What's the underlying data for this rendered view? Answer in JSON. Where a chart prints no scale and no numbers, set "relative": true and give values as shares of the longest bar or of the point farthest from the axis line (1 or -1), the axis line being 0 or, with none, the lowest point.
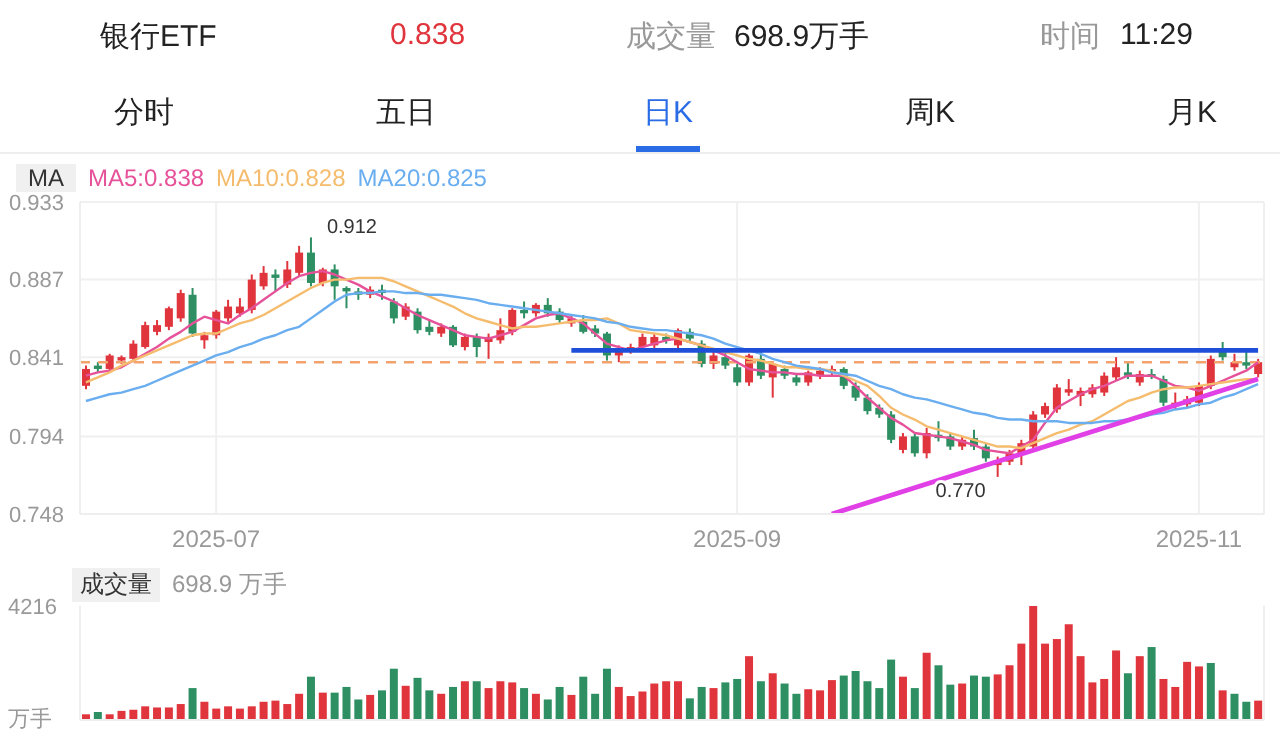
{
  "chart_data": [
    {
      "type": "other",
      "title": "银行ETF",
      "annotations": [
        "0.838",
        "成交量",
        "698.9万手",
        "时间",
        "11:29",
        "分时",
        "五日",
        "日K",
        "周K",
        "月K"
      ]
    },
    {
      "type": "candlestick",
      "categories": [
        null,
        null,
        null,
        null,
        null,
        null,
        null,
        null,
        null,
        null,
        null,
        "2025-07",
        null,
        null,
        null,
        null,
        null,
        null,
        null,
        null,
        null,
        null,
        null,
        null,
        null,
        null,
        null,
        null,
        null,
        null,
        null,
        null,
        null,
        null,
        null,
        null,
        null,
        null,
        null,
        null,
        null,
        null,
        null,
        null,
        null,
        null,
        null,
        null,
        null,
        null,
        null,
        null,
        null,
        null,
        null,
        "2025-09",
        null,
        null,
        null,
        null,
        null,
        null,
        null,
        null,
        null,
        null,
        null,
        null,
        null,
        null,
        null,
        null,
        null,
        null,
        null,
        null,
        null,
        null,
        null,
        null,
        null,
        null,
        null,
        null,
        null,
        null,
        null,
        null,
        null,
        null,
        null,
        null,
        null,
        null,
        "2025-11",
        null,
        null,
        null,
        null,
        null
      ],
      "ohlc": [
        [
          0.824,
          0.836,
          0.822,
          0.834
        ],
        [
          0.836,
          0.838,
          0.832,
          0.834
        ],
        [
          0.834,
          0.843,
          0.832,
          0.842
        ],
        [
          0.839,
          0.842,
          0.837,
          0.841
        ],
        [
          0.84,
          0.851,
          0.838,
          0.849
        ],
        [
          0.847,
          0.862,
          0.846,
          0.86
        ],
        [
          0.856,
          0.863,
          0.854,
          0.86
        ],
        [
          0.859,
          0.871,
          0.857,
          0.87
        ],
        [
          0.864,
          0.881,
          0.862,
          0.879
        ],
        [
          0.878,
          0.882,
          0.853,
          0.855
        ],
        [
          0.851,
          0.856,
          0.846,
          0.854
        ],
        [
          0.854,
          0.869,
          0.852,
          0.868
        ],
        [
          0.864,
          0.875,
          0.862,
          0.871
        ],
        [
          0.867,
          0.876,
          0.865,
          0.871
        ],
        [
          0.869,
          0.89,
          0.867,
          0.887
        ],
        [
          0.883,
          0.895,
          0.881,
          0.891
        ],
        [
          0.89,
          0.893,
          0.88,
          0.888
        ],
        [
          0.884,
          0.898,
          0.882,
          0.893
        ],
        [
          0.891,
          0.907,
          0.889,
          0.903
        ],
        [
          0.903,
          0.912,
          0.883,
          0.885
        ],
        [
          0.885,
          0.894,
          0.883,
          0.893
        ],
        [
          0.893,
          0.896,
          0.875,
          0.883
        ],
        [
          0.882,
          0.883,
          0.87,
          0.88
        ],
        [
          0.88,
          0.882,
          0.875,
          0.878
        ],
        [
          0.878,
          0.883,
          0.876,
          0.881
        ],
        [
          0.881,
          0.884,
          0.875,
          0.879
        ],
        [
          0.874,
          0.876,
          0.861,
          0.864
        ],
        [
          0.865,
          0.873,
          0.863,
          0.871
        ],
        [
          0.868,
          0.87,
          0.855,
          0.857
        ],
        [
          0.859,
          0.863,
          0.854,
          0.856
        ],
        [
          0.855,
          0.861,
          0.853,
          0.859
        ],
        [
          0.859,
          0.86,
          0.847,
          0.848
        ],
        [
          0.847,
          0.855,
          0.845,
          0.853
        ],
        [
          0.853,
          0.855,
          0.841,
          0.847
        ],
        [
          0.85,
          0.855,
          0.84,
          0.853
        ],
        [
          0.851,
          0.864,
          0.849,
          0.857
        ],
        [
          0.856,
          0.87,
          0.854,
          0.869
        ],
        [
          0.869,
          0.874,
          0.864,
          0.867
        ],
        [
          0.867,
          0.873,
          0.865,
          0.872
        ],
        [
          0.872,
          0.876,
          0.865,
          0.867
        ],
        [
          0.868,
          0.87,
          0.861,
          0.863
        ],
        [
          0.861,
          0.866,
          0.859,
          0.864
        ],
        [
          0.862,
          0.866,
          0.855,
          0.856
        ],
        [
          0.858,
          0.86,
          0.853,
          0.855
        ],
        [
          0.855,
          0.856,
          0.839,
          0.842
        ],
        [
          0.842,
          0.848,
          0.838,
          0.846
        ],
        [
          0.845,
          0.849,
          0.843,
          0.847
        ],
        [
          0.847,
          0.855,
          0.845,
          0.853
        ],
        [
          0.848,
          0.855,
          0.846,
          0.853
        ],
        [
          0.853,
          0.855,
          0.849,
          0.851
        ],
        [
          0.848,
          0.858,
          0.846,
          0.857
        ],
        [
          0.856,
          0.858,
          0.85,
          0.852
        ],
        [
          0.849,
          0.851,
          0.835,
          0.837
        ],
        [
          0.837,
          0.844,
          0.834,
          0.842
        ],
        [
          0.841,
          0.845,
          0.834,
          0.836
        ],
        [
          0.835,
          0.837,
          0.824,
          0.826
        ],
        [
          0.826,
          0.843,
          0.824,
          0.842
        ],
        [
          0.84,
          0.844,
          0.828,
          0.83
        ],
        [
          0.829,
          0.838,
          0.817,
          0.837
        ],
        [
          0.834,
          0.836,
          0.828,
          0.83
        ],
        [
          0.829,
          0.831,
          0.824,
          0.826
        ],
        [
          0.826,
          0.833,
          0.824,
          0.832
        ],
        [
          0.83,
          0.835,
          0.828,
          0.833
        ],
        [
          0.832,
          0.836,
          0.83,
          0.834
        ],
        [
          0.834,
          0.835,
          0.822,
          0.824
        ],
        [
          0.824,
          0.826,
          0.815,
          0.817
        ],
        [
          0.817,
          0.819,
          0.807,
          0.809
        ],
        [
          0.811,
          0.813,
          0.805,
          0.807
        ],
        [
          0.807,
          0.809,
          0.79,
          0.792
        ],
        [
          0.786,
          0.796,
          0.784,
          0.794
        ],
        [
          0.794,
          0.796,
          0.782,
          0.784
        ],
        [
          0.784,
          0.799,
          0.781,
          0.796
        ],
        [
          0.795,
          0.803,
          0.791,
          0.793
        ],
        [
          0.794,
          0.796,
          0.786,
          0.788
        ],
        [
          0.788,
          0.794,
          0.786,
          0.792
        ],
        [
          0.793,
          0.798,
          0.786,
          0.788
        ],
        [
          0.788,
          0.79,
          0.779,
          0.781
        ],
        [
          0.777,
          0.782,
          0.77,
          0.78
        ],
        [
          0.779,
          0.786,
          0.777,
          0.784
        ],
        [
          0.783,
          0.792,
          0.777,
          0.79
        ],
        [
          0.788,
          0.809,
          0.786,
          0.807
        ],
        [
          0.807,
          0.814,
          0.805,
          0.812
        ],
        [
          0.81,
          0.825,
          0.808,
          0.823
        ],
        [
          0.82,
          0.828,
          0.818,
          0.822
        ],
        [
          0.818,
          0.823,
          0.812,
          0.821
        ],
        [
          0.819,
          0.825,
          0.817,
          0.823
        ],
        [
          0.82,
          0.832,
          0.818,
          0.83
        ],
        [
          0.829,
          0.841,
          0.827,
          0.835
        ],
        [
          0.832,
          0.838,
          0.828,
          0.83
        ],
        [
          0.826,
          0.833,
          0.824,
          0.831
        ],
        [
          0.831,
          0.834,
          0.828,
          0.83
        ],
        [
          0.828,
          0.83,
          0.812,
          0.814
        ],
        [
          0.812,
          0.82,
          0.81,
          0.814
        ],
        [
          0.813,
          0.818,
          0.811,
          0.816
        ],
        [
          0.814,
          0.826,
          0.812,
          0.824
        ],
        [
          0.824,
          0.842,
          0.822,
          0.84
        ],
        [
          0.845,
          0.85,
          0.839,
          0.841
        ],
        [
          0.835,
          0.843,
          0.833,
          0.838
        ],
        [
          0.838,
          0.845,
          0.834,
          0.836
        ],
        [
          0.831,
          0.84,
          0.829,
          0.838
        ]
      ],
      "series": [
        {
          "type": "line",
          "name": "MA5:0.838",
          "color": "#e6529a",
          "values": [
            0.83,
            0.832,
            0.833,
            0.835,
            0.839,
            0.843,
            0.847,
            0.852,
            0.856,
            0.861,
            0.865,
            0.863,
            0.861,
            0.866,
            0.87,
            0.875,
            0.88,
            0.885,
            0.889,
            0.891,
            0.892,
            0.89,
            0.887,
            0.884,
            0.88,
            0.877,
            0.874,
            0.87,
            0.866,
            0.863,
            0.86,
            0.857,
            0.854,
            0.853,
            0.852,
            0.854,
            0.856,
            0.86,
            0.864,
            0.866,
            0.867,
            0.864,
            0.861,
            0.855,
            0.849,
            0.847,
            0.845,
            0.847,
            0.849,
            0.851,
            0.852,
            0.85,
            0.848,
            0.845,
            0.842,
            0.838,
            0.834,
            0.833,
            0.832,
            0.832,
            0.831,
            0.831,
            0.83,
            0.83,
            0.83,
            0.824,
            0.817,
            0.811,
            0.805,
            0.801,
            0.796,
            0.795,
            0.794,
            0.793,
            0.791,
            0.789,
            0.786,
            0.785,
            0.784,
            0.788,
            0.792,
            0.802,
            0.811,
            0.815,
            0.819,
            0.822,
            0.824,
            0.827,
            0.83,
            0.83,
            0.83,
            0.827,
            0.824,
            0.823,
            0.821,
            0.824,
            0.827,
            0.83,
            0.833,
            0.838
          ]
        },
        {
          "type": "line",
          "name": "MA10:0.828",
          "color": "#f5bc6e",
          "values": [
            0.826,
            0.829,
            0.832,
            0.836,
            0.839,
            0.842,
            0.845,
            0.848,
            0.851,
            0.854,
            0.855,
            0.855,
            0.858,
            0.861,
            0.863,
            0.866,
            0.87,
            0.874,
            0.878,
            0.882,
            0.885,
            0.887,
            0.887,
            0.888,
            0.888,
            0.888,
            0.886,
            0.883,
            0.88,
            0.877,
            0.874,
            0.871,
            0.867,
            0.864,
            0.862,
            0.86,
            0.858,
            0.859,
            0.859,
            0.86,
            0.861,
            0.862,
            0.863,
            0.863,
            0.864,
            0.861,
            0.857,
            0.856,
            0.855,
            0.854,
            0.852,
            0.85,
            0.848,
            0.846,
            0.844,
            0.842,
            0.84,
            0.839,
            0.837,
            0.835,
            0.835,
            0.834,
            0.834,
            0.833,
            0.83,
            0.827,
            0.824,
            0.818,
            0.811,
            0.807,
            0.804,
            0.8,
            0.798,
            0.796,
            0.794,
            0.792,
            0.79,
            0.788,
            0.788,
            0.787,
            0.79,
            0.793,
            0.796,
            0.798,
            0.801,
            0.803,
            0.807,
            0.811,
            0.815,
            0.817,
            0.82,
            0.822,
            0.823,
            0.823,
            0.824,
            0.825,
            0.826,
            0.827,
            0.828,
            0.828
          ]
        },
        {
          "type": "line",
          "name": "MA20:0.825",
          "color": "#6aaef0",
          "values": [
            0.815,
            0.817,
            0.819,
            0.82,
            0.822,
            0.824,
            0.827,
            0.83,
            0.833,
            0.836,
            0.839,
            0.842,
            0.844,
            0.847,
            0.849,
            0.852,
            0.854,
            0.857,
            0.859,
            0.864,
            0.869,
            0.874,
            0.878,
            0.879,
            0.879,
            0.88,
            0.88,
            0.879,
            0.879,
            0.878,
            0.878,
            0.877,
            0.876,
            0.875,
            0.873,
            0.872,
            0.871,
            0.87,
            0.869,
            0.868,
            0.867,
            0.866,
            0.865,
            0.864,
            0.862,
            0.861,
            0.859,
            0.858,
            0.857,
            0.857,
            0.856,
            0.855,
            0.854,
            0.852,
            0.849,
            0.847,
            0.845,
            0.843,
            0.84,
            0.838,
            0.836,
            0.835,
            0.834,
            0.832,
            0.831,
            0.83,
            0.827,
            0.824,
            0.822,
            0.819,
            0.817,
            0.816,
            0.814,
            0.812,
            0.81,
            0.808,
            0.807,
            0.805,
            0.804,
            0.804,
            0.803,
            0.803,
            0.803,
            0.802,
            0.802,
            0.802,
            0.803,
            0.803,
            0.804,
            0.805,
            0.807,
            0.808,
            0.81,
            0.811,
            0.813,
            0.814,
            0.817,
            0.819,
            0.822,
            0.825
          ]
        },
        {
          "type": "line",
          "color": "#1f4fd8",
          "values": [
            null,
            null,
            null,
            null,
            null,
            null,
            null,
            null,
            null,
            null,
            null,
            null,
            null,
            null,
            null,
            null,
            null,
            null,
            null,
            null,
            null,
            null,
            null,
            null,
            null,
            null,
            null,
            null,
            null,
            null,
            null,
            null,
            null,
            null,
            null,
            null,
            null,
            null,
            null,
            null,
            null,
            0.845,
            0.845,
            0.845,
            0.845,
            0.845,
            0.845,
            0.845,
            0.845,
            0.845,
            0.845,
            0.845,
            0.845,
            0.845,
            0.845,
            0.845,
            0.845,
            0.845,
            0.845,
            0.845,
            0.845,
            0.845,
            0.845,
            0.845,
            0.845,
            0.845,
            0.845,
            0.845,
            0.845,
            0.845,
            0.845,
            0.845,
            0.845,
            0.845,
            0.845,
            0.845,
            0.845,
            0.845,
            0.845,
            0.845,
            0.845,
            0.845,
            0.845,
            0.845,
            0.845,
            0.845,
            0.845,
            0.845,
            0.845,
            0.845,
            0.845,
            0.845,
            0.845,
            0.845,
            0.845,
            0.845,
            0.845,
            0.845,
            0.845,
            0.845
          ]
        },
        {
          "type": "line",
          "color": "#e040e6",
          "values": [
            null,
            null,
            null,
            null,
            null,
            null,
            null,
            null,
            null,
            null,
            null,
            null,
            null,
            null,
            null,
            null,
            null,
            null,
            null,
            null,
            null,
            null,
            null,
            null,
            null,
            null,
            null,
            null,
            null,
            null,
            null,
            null,
            null,
            null,
            null,
            null,
            null,
            null,
            null,
            null,
            null,
            null,
            null,
            null,
            null,
            null,
            null,
            null,
            null,
            null,
            null,
            null,
            null,
            null,
            null,
            null,
            null,
            null,
            null,
            null,
            null,
            null,
            null,
            0.748,
            null,
            null,
            null,
            null,
            null,
            null,
            null,
            null,
            null,
            null,
            null,
            null,
            null,
            null,
            null,
            null,
            null,
            null,
            null,
            null,
            null,
            null,
            null,
            null,
            null,
            null,
            null,
            null,
            null,
            null,
            null,
            null,
            null,
            null,
            null,
            0.828
          ]
        }
      ],
      "ylim": [
        0.748,
        0.933
      ],
      "yticks": [
        0.748,
        0.794,
        0.841,
        0.887,
        0.933
      ],
      "grid": true,
      "legend": "top left",
      "ref_lines": [
        {
          "axis": "y",
          "value": 0.838,
          "color": "#f4a26c",
          "line_style": "dashed"
        }
      ],
      "annotations": [
        "MA",
        "0.912",
        "0.770"
      ]
    },
    {
      "type": "bar",
      "title": "成交量",
      "subtitle": "698.9 万手",
      "categories": [
        null,
        null,
        null,
        null,
        null,
        null,
        null,
        null,
        null,
        null,
        null,
        "2025-07",
        null,
        null,
        null,
        null,
        null,
        null,
        null,
        null,
        null,
        null,
        null,
        null,
        null,
        null,
        null,
        null,
        null,
        null,
        null,
        null,
        null,
        null,
        null,
        null,
        null,
        null,
        null,
        null,
        null,
        null,
        null,
        null,
        null,
        null,
        null,
        null,
        null,
        null,
        null,
        null,
        null,
        null,
        null,
        "2025-09",
        null,
        null,
        null,
        null,
        null,
        null,
        null,
        null,
        null,
        null,
        null,
        null,
        null,
        null,
        null,
        null,
        null,
        null,
        null,
        null,
        null,
        null,
        null,
        null,
        null,
        null,
        null,
        null,
        null,
        null,
        null,
        null,
        null,
        null,
        null,
        null,
        null,
        null,
        "2025-11",
        null,
        null,
        null,
        null,
        null
      ],
      "relative": true,
      "values": [
        0.05,
        0.07,
        0.05,
        0.08,
        0.09,
        0.12,
        0.11,
        0.11,
        0.14,
        0.28,
        0.16,
        0.1,
        0.12,
        0.1,
        0.12,
        0.16,
        0.17,
        0.14,
        0.23,
        0.38,
        0.24,
        0.24,
        0.29,
        0.18,
        0.22,
        0.26,
        0.45,
        0.3,
        0.37,
        0.26,
        0.23,
        0.29,
        0.34,
        0.34,
        0.28,
        0.34,
        0.33,
        0.28,
        0.23,
        0.18,
        0.29,
        0.22,
        0.38,
        0.23,
        0.45,
        0.29,
        0.21,
        0.25,
        0.32,
        0.34,
        0.34,
        0.19,
        0.29,
        0.28,
        0.33,
        0.36,
        0.56,
        0.34,
        0.41,
        0.32,
        0.23,
        0.27,
        0.26,
        0.35,
        0.39,
        0.43,
        0.34,
        0.28,
        0.53,
        0.38,
        0.28,
        0.59,
        0.48,
        0.31,
        0.32,
        0.39,
        0.38,
        0.4,
        0.48,
        0.67,
        1,
        0.67,
        0.71,
        0.84,
        0.56,
        0.33,
        0.36,
        0.61,
        0.41,
        0.56,
        0.64,
        0.36,
        0.29,
        0.51,
        0.47,
        0.5,
        0.26,
        0.23,
        0.16,
        0.17
      ],
      "colors": [
        "#e0353d",
        "#2e8f63",
        "#e0353d",
        "#e0353d",
        "#e0353d",
        "#e0353d",
        "#e0353d",
        "#e0353d",
        "#e0353d",
        "#2e8f63",
        "#e0353d",
        "#e0353d",
        "#e0353d",
        "#e0353d",
        "#e0353d",
        "#e0353d",
        "#e0353d",
        "#e0353d",
        "#e0353d",
        "#2e8f63",
        "#e0353d",
        "#2e8f63",
        "#2e8f63",
        "#2e8f63",
        "#e0353d",
        "#2e8f63",
        "#2e8f63",
        "#e0353d",
        "#2e8f63",
        "#2e8f63",
        "#e0353d",
        "#2e8f63",
        "#e0353d",
        "#2e8f63",
        "#e0353d",
        "#e0353d",
        "#e0353d",
        "#2e8f63",
        "#e0353d",
        "#2e8f63",
        "#2e8f63",
        "#e0353d",
        "#2e8f63",
        "#2e8f63",
        "#2e8f63",
        "#e0353d",
        "#e0353d",
        "#e0353d",
        "#e0353d",
        "#e0353d",
        "#e0353d",
        "#2e8f63",
        "#2e8f63",
        "#e0353d",
        "#2e8f63",
        "#2e8f63",
        "#e0353d",
        "#2e8f63",
        "#e0353d",
        "#2e8f63",
        "#2e8f63",
        "#e0353d",
        "#e0353d",
        "#e0353d",
        "#2e8f63",
        "#2e8f63",
        "#2e8f63",
        "#2e8f63",
        "#2e8f63",
        "#e0353d",
        "#2e8f63",
        "#e0353d",
        "#2e8f63",
        "#2e8f63",
        "#e0353d",
        "#2e8f63",
        "#2e8f63",
        "#e0353d",
        "#e0353d",
        "#e0353d",
        "#e0353d",
        "#e0353d",
        "#e0353d",
        "#e0353d",
        "#e0353d",
        "#e0353d",
        "#e0353d",
        "#e0353d",
        "#2e8f63",
        "#e0353d",
        "#2e8f63",
        "#e0353d",
        "#e0353d",
        "#e0353d",
        "#e0353d",
        "#2e8f63",
        "#e0353d",
        "#2e8f63",
        "#2e8f63",
        "#e0353d"
      ],
      "ylabel": "万手",
      "annotations": [
        "4216"
      ],
      "grid": "x",
      "tick_labels": false
    }
  ]
}
